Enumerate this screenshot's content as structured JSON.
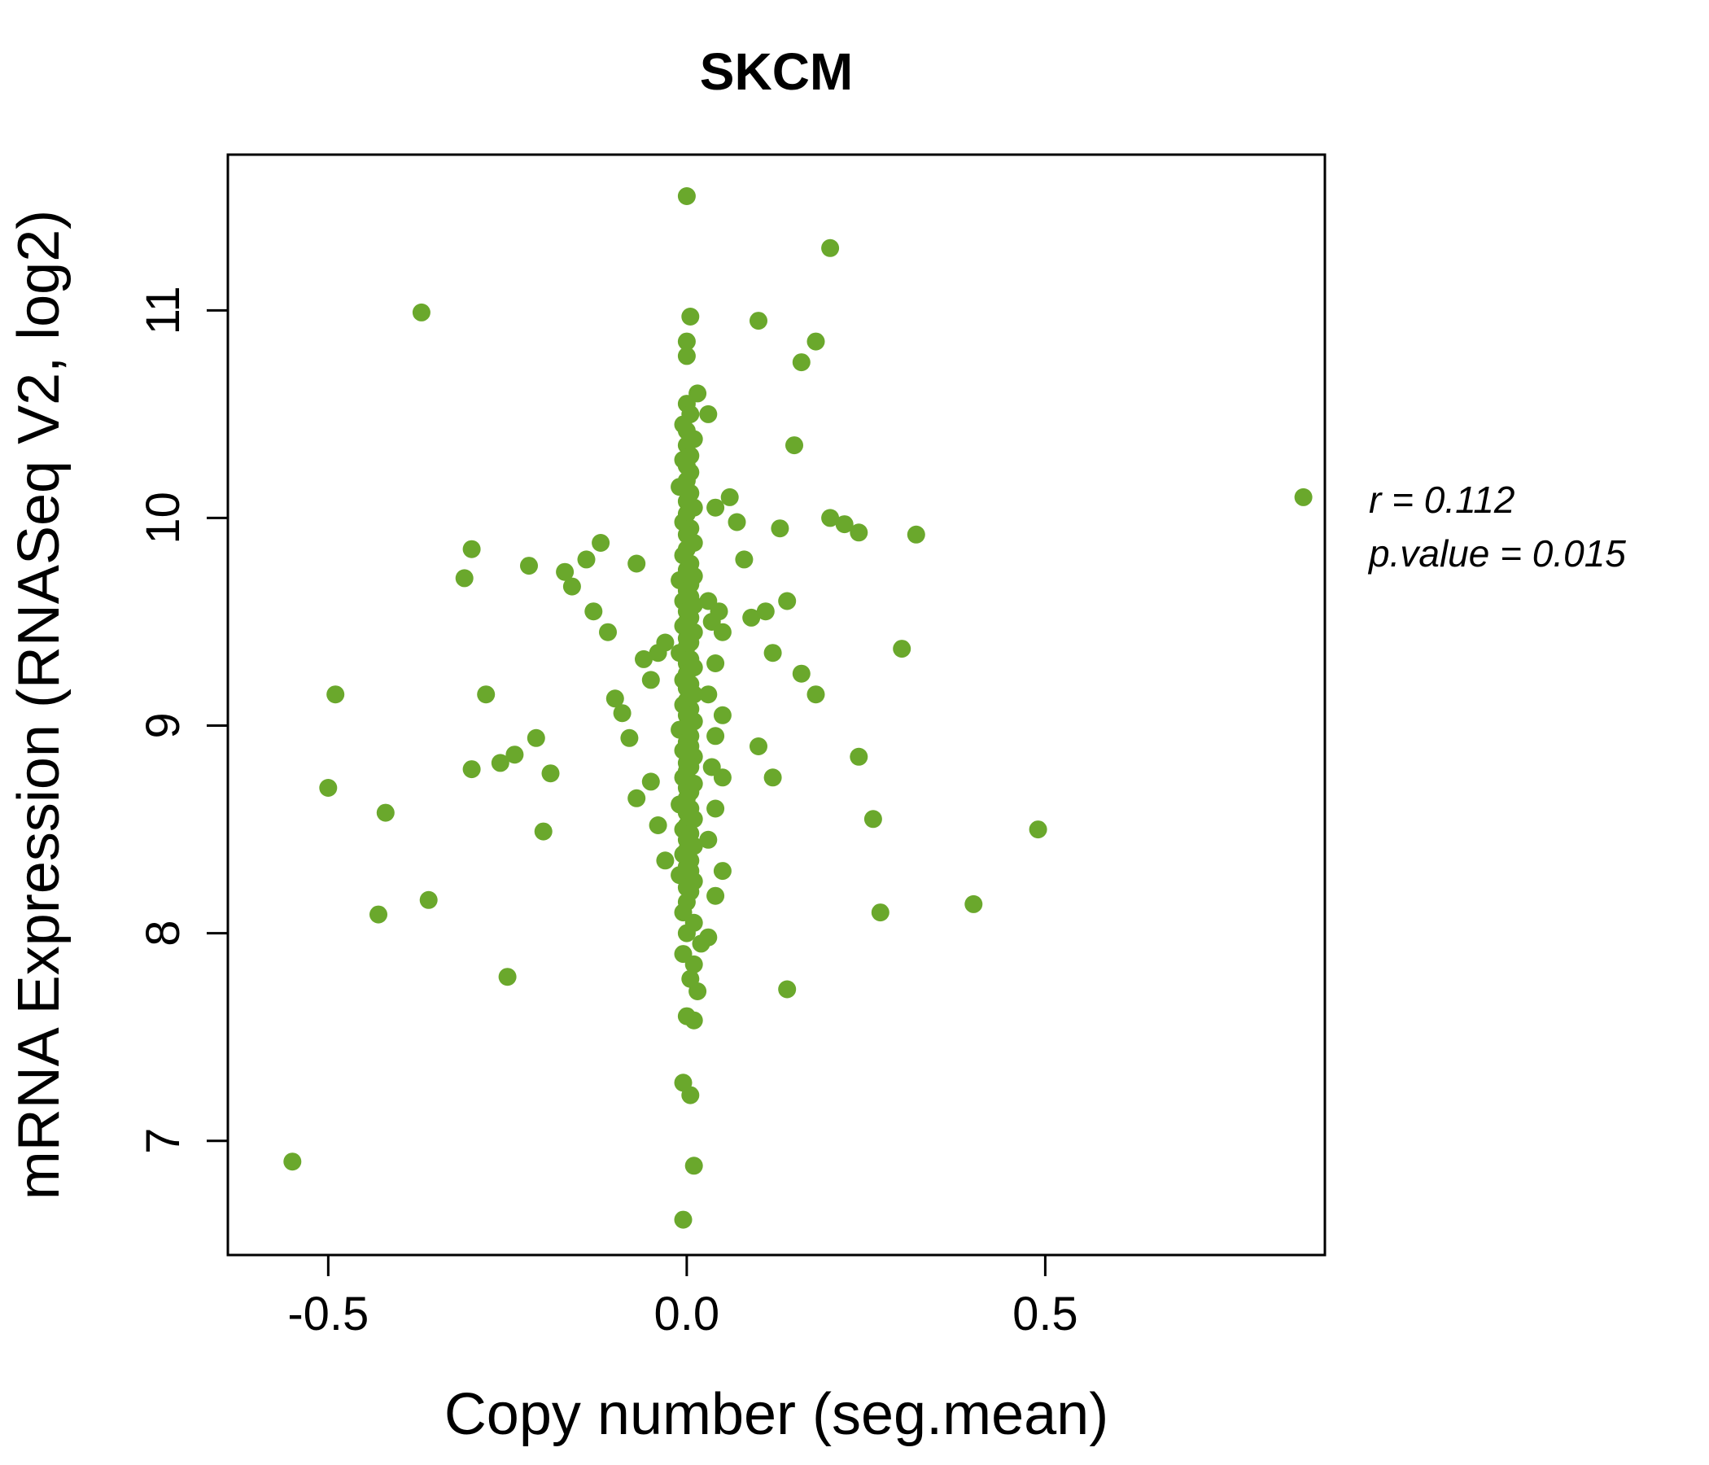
{
  "title": "SKCM",
  "annotation": {
    "r_label": "r = 0.112",
    "p_label": "p.value = 0.015"
  },
  "colors": {
    "point": "#6AA82C",
    "title": "#6AA82C",
    "axis": "#000000"
  },
  "chart_data": {
    "type": "scatter",
    "title": "SKCM",
    "xlabel": "Copy number (seg.mean)",
    "ylabel": "mRNA Expression (RNASeq V2, log2)",
    "xlim": [
      -0.64,
      0.89
    ],
    "ylim": [
      6.45,
      11.75
    ],
    "xticks": [
      -0.5,
      0.0,
      0.5
    ],
    "yticks": [
      7,
      8,
      9,
      10,
      11
    ],
    "grid": false,
    "legend": "none",
    "stats": {
      "r": 0.112,
      "p_value": 0.015
    },
    "points": [
      [
        0.0,
        11.55
      ],
      [
        0.005,
        10.97
      ],
      [
        0.0,
        10.85
      ],
      [
        0.0,
        10.78
      ],
      [
        0.015,
        10.6
      ],
      [
        0.0,
        10.55
      ],
      [
        0.005,
        10.5
      ],
      [
        -0.005,
        10.45
      ],
      [
        0.0,
        10.42
      ],
      [
        0.01,
        10.38
      ],
      [
        0.0,
        10.35
      ],
      [
        0.005,
        10.3
      ],
      [
        -0.005,
        10.28
      ],
      [
        0.0,
        10.25
      ],
      [
        0.005,
        10.22
      ],
      [
        0.0,
        10.18
      ],
      [
        -0.01,
        10.15
      ],
      [
        0.005,
        10.12
      ],
      [
        0.0,
        10.08
      ],
      [
        0.01,
        10.05
      ],
      [
        0.0,
        10.02
      ],
      [
        -0.005,
        9.98
      ],
      [
        0.005,
        9.95
      ],
      [
        0.0,
        9.92
      ],
      [
        0.01,
        9.88
      ],
      [
        0.0,
        9.85
      ],
      [
        -0.005,
        9.82
      ],
      [
        0.005,
        9.78
      ],
      [
        0.0,
        9.75
      ],
      [
        0.01,
        9.72
      ],
      [
        -0.01,
        9.7
      ],
      [
        0.005,
        9.68
      ],
      [
        0.0,
        9.65
      ],
      [
        0.005,
        9.62
      ],
      [
        -0.005,
        9.6
      ],
      [
        0.01,
        9.58
      ],
      [
        0.0,
        9.55
      ],
      [
        0.005,
        9.52
      ],
      [
        0.0,
        9.5
      ],
      [
        -0.005,
        9.48
      ],
      [
        0.01,
        9.45
      ],
      [
        0.0,
        9.42
      ],
      [
        0.005,
        9.4
      ],
      [
        0.0,
        9.38
      ],
      [
        -0.01,
        9.35
      ],
      [
        0.005,
        9.32
      ],
      [
        0.0,
        9.3
      ],
      [
        0.01,
        9.28
      ],
      [
        0.0,
        9.25
      ],
      [
        -0.005,
        9.22
      ],
      [
        0.005,
        9.2
      ],
      [
        0.0,
        9.18
      ],
      [
        0.01,
        9.15
      ],
      [
        0.0,
        9.12
      ],
      [
        -0.005,
        9.1
      ],
      [
        0.005,
        9.08
      ],
      [
        0.0,
        9.05
      ],
      [
        0.01,
        9.02
      ],
      [
        0.0,
        9.0
      ],
      [
        -0.01,
        8.98
      ],
      [
        0.005,
        8.95
      ],
      [
        0.0,
        8.92
      ],
      [
        0.005,
        8.9
      ],
      [
        -0.005,
        8.88
      ],
      [
        0.01,
        8.85
      ],
      [
        0.0,
        8.82
      ],
      [
        0.005,
        8.8
      ],
      [
        0.0,
        8.78
      ],
      [
        -0.005,
        8.75
      ],
      [
        0.01,
        8.72
      ],
      [
        0.0,
        8.7
      ],
      [
        0.005,
        8.68
      ],
      [
        0.0,
        8.65
      ],
      [
        -0.01,
        8.62
      ],
      [
        0.005,
        8.6
      ],
      [
        0.0,
        8.58
      ],
      [
        0.01,
        8.55
      ],
      [
        0.0,
        8.52
      ],
      [
        -0.005,
        8.5
      ],
      [
        0.005,
        8.48
      ],
      [
        0.0,
        8.45
      ],
      [
        0.01,
        8.42
      ],
      [
        0.0,
        8.4
      ],
      [
        -0.005,
        8.38
      ],
      [
        0.005,
        8.35
      ],
      [
        0.0,
        8.32
      ],
      [
        0.005,
        8.3
      ],
      [
        -0.01,
        8.28
      ],
      [
        0.01,
        8.25
      ],
      [
        0.0,
        8.22
      ],
      [
        0.005,
        8.2
      ],
      [
        0.0,
        8.15
      ],
      [
        -0.005,
        8.1
      ],
      [
        0.01,
        8.05
      ],
      [
        0.0,
        8.0
      ],
      [
        0.02,
        7.95
      ],
      [
        -0.005,
        7.9
      ],
      [
        0.01,
        7.85
      ],
      [
        0.005,
        7.78
      ],
      [
        0.015,
        7.72
      ],
      [
        0.0,
        7.6
      ],
      [
        0.01,
        7.58
      ],
      [
        -0.005,
        7.28
      ],
      [
        0.005,
        7.22
      ],
      [
        0.01,
        6.88
      ],
      [
        -0.005,
        6.62
      ],
      [
        0.03,
        10.5
      ],
      [
        0.04,
        10.05
      ],
      [
        0.03,
        9.6
      ],
      [
        0.045,
        9.55
      ],
      [
        0.035,
        9.5
      ],
      [
        0.05,
        9.45
      ],
      [
        0.04,
        9.3
      ],
      [
        0.03,
        9.15
      ],
      [
        0.05,
        9.05
      ],
      [
        0.04,
        8.95
      ],
      [
        0.035,
        8.8
      ],
      [
        0.05,
        8.75
      ],
      [
        0.04,
        8.6
      ],
      [
        0.03,
        8.45
      ],
      [
        0.05,
        8.3
      ],
      [
        0.04,
        8.18
      ],
      [
        0.03,
        7.98
      ],
      [
        -0.55,
        6.9
      ],
      [
        -0.5,
        8.7
      ],
      [
        -0.49,
        9.15
      ],
      [
        -0.43,
        8.09
      ],
      [
        -0.42,
        8.58
      ],
      [
        -0.37,
        10.99
      ],
      [
        -0.36,
        8.16
      ],
      [
        -0.31,
        9.71
      ],
      [
        -0.3,
        9.85
      ],
      [
        -0.3,
        8.79
      ],
      [
        -0.28,
        9.15
      ],
      [
        -0.26,
        8.82
      ],
      [
        -0.25,
        7.79
      ],
      [
        -0.24,
        8.86
      ],
      [
        -0.22,
        9.77
      ],
      [
        -0.21,
        8.94
      ],
      [
        -0.2,
        8.49
      ],
      [
        -0.19,
        8.77
      ],
      [
        -0.17,
        9.74
      ],
      [
        -0.16,
        9.67
      ],
      [
        -0.14,
        9.8
      ],
      [
        -0.13,
        9.55
      ],
      [
        -0.12,
        9.88
      ],
      [
        -0.11,
        9.45
      ],
      [
        -0.1,
        9.13
      ],
      [
        -0.09,
        9.06
      ],
      [
        -0.08,
        8.94
      ],
      [
        -0.07,
        9.78
      ],
      [
        -0.07,
        8.65
      ],
      [
        -0.06,
        9.32
      ],
      [
        -0.05,
        9.22
      ],
      [
        -0.05,
        8.73
      ],
      [
        -0.04,
        9.35
      ],
      [
        -0.04,
        8.52
      ],
      [
        -0.03,
        9.4
      ],
      [
        -0.03,
        8.35
      ],
      [
        0.06,
        10.1
      ],
      [
        0.07,
        9.98
      ],
      [
        0.08,
        9.8
      ],
      [
        0.09,
        9.52
      ],
      [
        0.1,
        10.95
      ],
      [
        0.1,
        8.9
      ],
      [
        0.11,
        9.55
      ],
      [
        0.12,
        9.35
      ],
      [
        0.12,
        8.75
      ],
      [
        0.13,
        9.95
      ],
      [
        0.14,
        9.6
      ],
      [
        0.14,
        7.73
      ],
      [
        0.15,
        10.35
      ],
      [
        0.16,
        9.25
      ],
      [
        0.16,
        10.75
      ],
      [
        0.18,
        10.85
      ],
      [
        0.18,
        9.15
      ],
      [
        0.2,
        11.3
      ],
      [
        0.2,
        10.0
      ],
      [
        0.22,
        9.97
      ],
      [
        0.24,
        9.93
      ],
      [
        0.24,
        8.85
      ],
      [
        0.26,
        8.55
      ],
      [
        0.27,
        8.1
      ],
      [
        0.3,
        9.37
      ],
      [
        0.32,
        9.92
      ],
      [
        0.4,
        8.14
      ],
      [
        0.49,
        8.5
      ],
      [
        0.86,
        10.1
      ]
    ]
  }
}
